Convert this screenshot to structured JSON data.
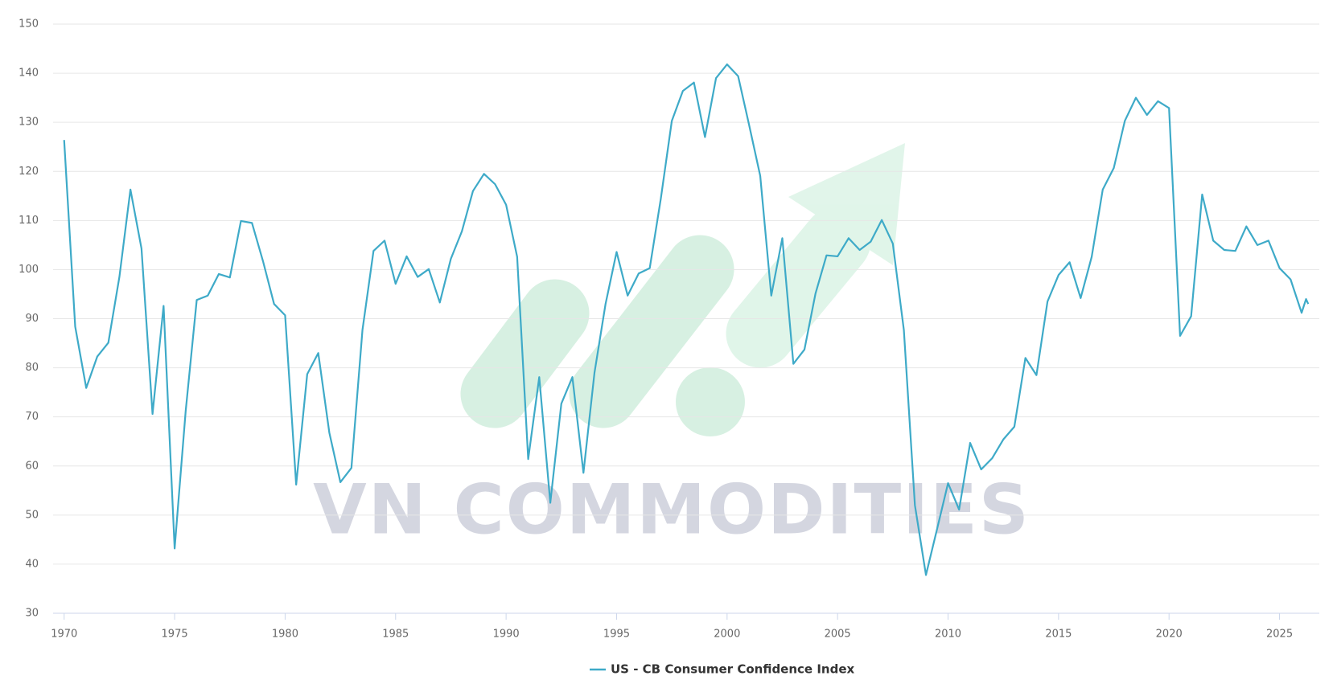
{
  "chart_data": {
    "type": "line",
    "watermark": "VN COMMODITIES",
    "x": [
      1970,
      1970.5,
      1971,
      1971.5,
      1972,
      1972.5,
      1973,
      1973.5,
      1974,
      1974.5,
      1975,
      1975.5,
      1976,
      1976.5,
      1977,
      1977.5,
      1978,
      1978.5,
      1979,
      1979.5,
      1980,
      1980.5,
      1981,
      1981.5,
      1982,
      1982.5,
      1983,
      1983.5,
      1984,
      1984.5,
      1985,
      1985.5,
      1986,
      1986.5,
      1987,
      1987.5,
      1988,
      1988.5,
      1989,
      1989.5,
      1990,
      1990.5,
      1991,
      1991.5,
      1992,
      1992.5,
      1993,
      1993.5,
      1994,
      1994.5,
      1995,
      1995.5,
      1996,
      1996.5,
      1997,
      1997.5,
      1998,
      1998.5,
      1999,
      1999.5,
      2000,
      2000.5,
      2001,
      2001.5,
      2002,
      2002.5,
      2003,
      2003.5,
      2004,
      2004.5,
      2005,
      2005.5,
      2006,
      2006.5,
      2007,
      2007.5,
      2008,
      2008.5,
      2009,
      2009.5,
      2010,
      2010.5,
      2011,
      2011.5,
      2012,
      2012.5,
      2013,
      2013.5,
      2014,
      2014.5,
      2015,
      2015.5,
      2016,
      2016.5,
      2017,
      2017.5,
      2018,
      2018.5,
      2019,
      2019.5,
      2020,
      2020.5,
      2021,
      2021.5,
      2022,
      2022.5,
      2023,
      2023.5,
      2024,
      2024.5,
      2025,
      2025.5,
      2026,
      2026.2,
      2026.3
    ],
    "series": [
      {
        "name": "US - CB Consumer Confidence Index",
        "color": "#3eaac8",
        "values": [
          126.4,
          88.4,
          75.9,
          82.3,
          85.1,
          98.5,
          116.3,
          104.3,
          70.6,
          92.6,
          43.2,
          71.2,
          93.8,
          94.7,
          99.1,
          98.4,
          109.9,
          109.5,
          101.7,
          93.0,
          90.7,
          56.2,
          78.7,
          83.0,
          66.8,
          56.7,
          59.6,
          87.7,
          103.8,
          105.9,
          97.1,
          102.7,
          98.5,
          100.1,
          93.3,
          102.2,
          107.8,
          116.0,
          119.5,
          117.4,
          113.2,
          102.6,
          61.4,
          78.1,
          52.5,
          72.7,
          78.1,
          58.6,
          79.0,
          93.0,
          103.6,
          94.7,
          99.2,
          100.3,
          114.4,
          130.3,
          136.4,
          138.1,
          127.0,
          139.0,
          141.8,
          139.4,
          129.4,
          119.1,
          94.7,
          106.4,
          80.8,
          83.7,
          95.1,
          102.9,
          102.7,
          106.4,
          104.0,
          105.7,
          110.1,
          105.3,
          87.7,
          52.0,
          37.8,
          47.1,
          56.5,
          51.1,
          64.7,
          59.3,
          61.6,
          65.4,
          68.0,
          82.0,
          78.5,
          93.5,
          98.9,
          101.5,
          94.2,
          102.6,
          116.3,
          120.7,
          130.3,
          135.0,
          131.5,
          134.3,
          132.9,
          86.5,
          90.5,
          115.3,
          105.9,
          104.0,
          103.8,
          108.8,
          105.0,
          105.9,
          100.3,
          98.0,
          91.2,
          94.0,
          93.0
        ]
      }
    ],
    "xlim": [
      1969.5,
      2026.8
    ],
    "xticks": [
      1970,
      1975,
      1980,
      1985,
      1990,
      1995,
      2000,
      2005,
      2010,
      2015,
      2020,
      2025
    ],
    "ylim": [
      30,
      150
    ],
    "yticks": [
      30,
      40,
      50,
      60,
      70,
      80,
      90,
      100,
      110,
      120,
      130,
      140,
      150
    ],
    "grid": true,
    "legend": "bottom"
  }
}
